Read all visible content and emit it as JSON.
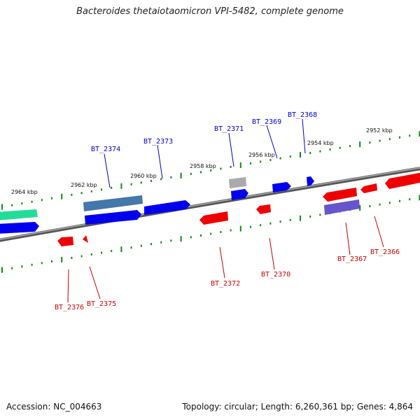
{
  "title": "Bacteroides thetaiotaomicron VPI-5482, complete genome",
  "footer": {
    "accession": "Accession: NC_004663",
    "summary": "Topology: circular; Length: 6,260,361 bp; Genes: 4,864"
  },
  "colors": {
    "forward_label": "#0000cc",
    "reverse_label": "#cc0000",
    "forward_gene": "#0000ee",
    "reverse_gene": "#ee0000",
    "tick": "#118811",
    "backbone": "#777777"
  },
  "kbp_labels": [
    "2964 kbp",
    "2962 kbp",
    "2960 kbp",
    "2958 kbp",
    "2956 kbp",
    "2954 kbp",
    "2952 kbp"
  ],
  "gene_labels": {
    "forward": [
      "BT_2374",
      "BT_2373",
      "BT_2371",
      "BT_2369",
      "BT_2368"
    ],
    "reverse": [
      "BT_2376",
      "BT_2375",
      "BT_2372",
      "BT_2370",
      "BT_2367",
      "BT_2366"
    ]
  }
}
